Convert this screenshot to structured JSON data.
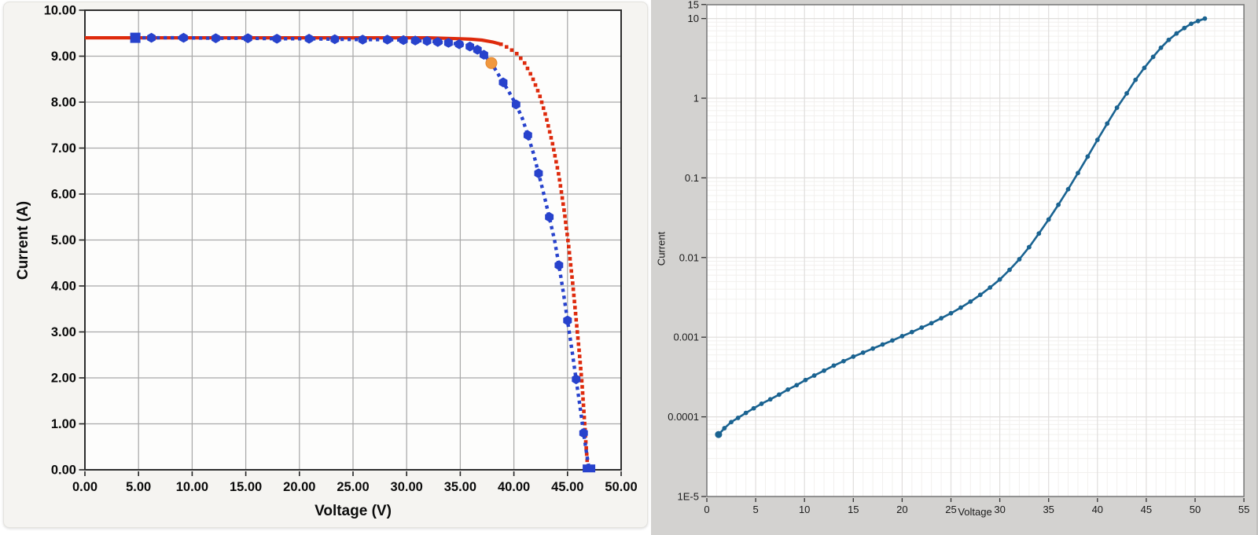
{
  "chart_data": [
    {
      "type": "line",
      "title": "",
      "xlabel": "Voltage (V)",
      "ylabel": "Current (A)",
      "xlim": [
        0,
        50
      ],
      "ylim": [
        0,
        10
      ],
      "grid": true,
      "x_ticks": [
        {
          "v": 0,
          "label": "0.00"
        },
        {
          "v": 5,
          "label": "5.00"
        },
        {
          "v": 10,
          "label": "10.00"
        },
        {
          "v": 15,
          "label": "15.00"
        },
        {
          "v": 20,
          "label": "20.00"
        },
        {
          "v": 25,
          "label": "25.00"
        },
        {
          "v": 30,
          "label": "30.00"
        },
        {
          "v": 35,
          "label": "35.00"
        },
        {
          "v": 40,
          "label": "40.00"
        },
        {
          "v": 45,
          "label": "45.00"
        },
        {
          "v": 50,
          "label": "50.00"
        }
      ],
      "y_ticks": [
        {
          "v": 0,
          "label": "0.00"
        },
        {
          "v": 1,
          "label": "1.00"
        },
        {
          "v": 2,
          "label": "2.00"
        },
        {
          "v": 3,
          "label": "3.00"
        },
        {
          "v": 4,
          "label": "4.00"
        },
        {
          "v": 5,
          "label": "5.00"
        },
        {
          "v": 6,
          "label": "6.00"
        },
        {
          "v": 7,
          "label": "7.00"
        },
        {
          "v": 8,
          "label": "8.00"
        },
        {
          "v": 9,
          "label": "9.00"
        },
        {
          "v": 10,
          "label": "10.00"
        }
      ],
      "series": [
        {
          "id": "model-iv-curve",
          "color": "#de2a0c",
          "style": "solid-then-dotted",
          "solid_until_v": 39.4,
          "points": [
            [
              0,
              9.4
            ],
            [
              2,
              9.4
            ],
            [
              4,
              9.4
            ],
            [
              6,
              9.4
            ],
            [
              8,
              9.4
            ],
            [
              10,
              9.4
            ],
            [
              12,
              9.4
            ],
            [
              14,
              9.4
            ],
            [
              16,
              9.4
            ],
            [
              18,
              9.4
            ],
            [
              20,
              9.4
            ],
            [
              22,
              9.4
            ],
            [
              24,
              9.4
            ],
            [
              26,
              9.4
            ],
            [
              28,
              9.4
            ],
            [
              30,
              9.4
            ],
            [
              32,
              9.4
            ],
            [
              33.5,
              9.39
            ],
            [
              35,
              9.38
            ],
            [
              36,
              9.37
            ],
            [
              37,
              9.35
            ],
            [
              38,
              9.31
            ],
            [
              38.8,
              9.26
            ],
            [
              39.5,
              9.18
            ],
            [
              40.3,
              9.05
            ],
            [
              41.0,
              8.85
            ],
            [
              41.7,
              8.55
            ],
            [
              42.4,
              8.15
            ],
            [
              43.0,
              7.68
            ],
            [
              43.6,
              7.1
            ],
            [
              44.2,
              6.4
            ],
            [
              44.7,
              5.62
            ],
            [
              45.1,
              4.88
            ],
            [
              45.5,
              4.02
            ],
            [
              45.8,
              3.28
            ],
            [
              46.1,
              2.55
            ],
            [
              46.35,
              1.88
            ],
            [
              46.55,
              1.18
            ],
            [
              46.7,
              0.62
            ],
            [
              46.85,
              0.15
            ],
            [
              46.9,
              0.02
            ]
          ]
        },
        {
          "id": "measured-iv-curve",
          "color": "#2742cc",
          "style": "dotted",
          "marker": "hexagon",
          "points": [
            [
              4.7,
              9.4
            ],
            [
              6.2,
              9.4
            ],
            [
              9.2,
              9.4
            ],
            [
              12.2,
              9.39
            ],
            [
              15.2,
              9.39
            ],
            [
              17.9,
              9.38
            ],
            [
              20.9,
              9.38
            ],
            [
              23.3,
              9.37
            ],
            [
              25.9,
              9.36
            ],
            [
              28.2,
              9.36
            ],
            [
              29.7,
              9.35
            ],
            [
              30.8,
              9.34
            ],
            [
              31.9,
              9.33
            ],
            [
              32.9,
              9.31
            ],
            [
              33.9,
              9.29
            ],
            [
              34.9,
              9.26
            ],
            [
              35.9,
              9.21
            ],
            [
              36.6,
              9.14
            ],
            [
              37.2,
              9.03
            ],
            [
              37.9,
              8.85
            ],
            [
              38.4,
              8.66
            ],
            [
              39.0,
              8.43
            ],
            [
              39.6,
              8.2
            ],
            [
              40.2,
              7.95
            ],
            [
              40.8,
              7.64
            ],
            [
              41.3,
              7.28
            ],
            [
              41.8,
              6.9
            ],
            [
              42.3,
              6.45
            ],
            [
              42.8,
              5.99
            ],
            [
              43.3,
              5.5
            ],
            [
              43.8,
              4.99
            ],
            [
              44.2,
              4.45
            ],
            [
              44.6,
              3.88
            ],
            [
              45.0,
              3.25
            ],
            [
              45.4,
              2.62
            ],
            [
              45.8,
              1.97
            ],
            [
              46.15,
              1.4
            ],
            [
              46.5,
              0.8
            ],
            [
              46.75,
              0.4
            ],
            [
              47.0,
              0.03
            ]
          ],
          "marker_points": [
            [
              6.2,
              9.4
            ],
            [
              9.2,
              9.4
            ],
            [
              12.2,
              9.39
            ],
            [
              15.2,
              9.39
            ],
            [
              17.9,
              9.38
            ],
            [
              20.9,
              9.38
            ],
            [
              23.3,
              9.37
            ],
            [
              25.9,
              9.36
            ],
            [
              28.2,
              9.36
            ],
            [
              29.7,
              9.35
            ],
            [
              30.8,
              9.34
            ],
            [
              31.9,
              9.33
            ],
            [
              32.9,
              9.31
            ],
            [
              33.9,
              9.29
            ],
            [
              34.9,
              9.26
            ],
            [
              35.9,
              9.21
            ],
            [
              36.6,
              9.14
            ],
            [
              37.2,
              9.03
            ],
            [
              39.0,
              8.43
            ],
            [
              40.2,
              7.95
            ],
            [
              41.3,
              7.28
            ],
            [
              42.3,
              6.45
            ],
            [
              43.3,
              5.5
            ],
            [
              44.2,
              4.45
            ],
            [
              45.0,
              3.25
            ],
            [
              45.8,
              1.97
            ],
            [
              46.5,
              0.8
            ]
          ],
          "start_marker": [
            4.7,
            9.4
          ],
          "end_marker": [
            47.0,
            0.03
          ]
        }
      ],
      "mpp_marker": {
        "color": "#f0983f",
        "edge": "#e4862e",
        "point": [
          37.9,
          8.85
        ]
      }
    },
    {
      "type": "line",
      "title": "",
      "xlabel": "Voltage",
      "ylabel": "Current",
      "xlim": [
        0,
        55
      ],
      "yscale": "log",
      "ylim": [
        1e-05,
        15
      ],
      "grid": true,
      "x_ticks": [
        {
          "v": 0,
          "label": "0"
        },
        {
          "v": 5,
          "label": "5"
        },
        {
          "v": 10,
          "label": "10"
        },
        {
          "v": 15,
          "label": "15"
        },
        {
          "v": 20,
          "label": "20"
        },
        {
          "v": 25,
          "label": "25"
        },
        {
          "v": 30,
          "label": "30"
        },
        {
          "v": 35,
          "label": "35"
        },
        {
          "v": 40,
          "label": "40"
        },
        {
          "v": 45,
          "label": "45"
        },
        {
          "v": 50,
          "label": "50"
        },
        {
          "v": 55,
          "label": "55"
        }
      ],
      "y_ticks": [
        {
          "v": 15,
          "label": "15"
        },
        {
          "v": 10,
          "label": "10"
        },
        {
          "v": 1,
          "label": "1"
        },
        {
          "v": 0.1,
          "label": "0.1"
        },
        {
          "v": 0.01,
          "label": "0.01"
        },
        {
          "v": 0.001,
          "label": "0.001"
        },
        {
          "v": 0.0001,
          "label": "0.0001"
        },
        {
          "v": 1e-05,
          "label": "1E-5"
        }
      ],
      "series": [
        {
          "id": "log-iv-curve",
          "color": "#1a6391",
          "marker": "circle",
          "points": [
            [
              1.2,
              6e-05
            ],
            [
              1.8,
              7.2e-05
            ],
            [
              2.5,
              8.6e-05
            ],
            [
              3.2,
              9.7e-05
            ],
            [
              4.0,
              0.000112
            ],
            [
              4.8,
              0.000128
            ],
            [
              5.6,
              0.000146
            ],
            [
              6.5,
              0.000166
            ],
            [
              7.4,
              0.00019
            ],
            [
              8.3,
              0.00022
            ],
            [
              9.2,
              0.00025
            ],
            [
              10.1,
              0.00029
            ],
            [
              11.0,
              0.00033
            ],
            [
              12.0,
              0.00038
            ],
            [
              13.0,
              0.00044
            ],
            [
              14.0,
              0.0005
            ],
            [
              15.0,
              0.00057
            ],
            [
              16.0,
              0.00064
            ],
            [
              17.0,
              0.00072
            ],
            [
              18.0,
              0.00081
            ],
            [
              19.0,
              0.00091
            ],
            [
              20.0,
              0.00103
            ],
            [
              21.0,
              0.00116
            ],
            [
              22.0,
              0.00132
            ],
            [
              23.0,
              0.0015
            ],
            [
              24.0,
              0.00173
            ],
            [
              25.0,
              0.002
            ],
            [
              26.0,
              0.00235
            ],
            [
              27.0,
              0.0028
            ],
            [
              28.0,
              0.0034
            ],
            [
              29.0,
              0.0042
            ],
            [
              30.0,
              0.0053
            ],
            [
              31.0,
              0.007
            ],
            [
              32.0,
              0.0095
            ],
            [
              33.0,
              0.0135
            ],
            [
              34.0,
              0.02
            ],
            [
              35.0,
              0.03
            ],
            [
              36.0,
              0.046
            ],
            [
              37.0,
              0.072
            ],
            [
              38.0,
              0.115
            ],
            [
              39.0,
              0.185
            ],
            [
              40.0,
              0.3
            ],
            [
              41.0,
              0.48
            ],
            [
              42.0,
              0.76
            ],
            [
              43.0,
              1.15
            ],
            [
              43.9,
              1.7
            ],
            [
              44.8,
              2.4
            ],
            [
              45.7,
              3.3
            ],
            [
              46.5,
              4.3
            ],
            [
              47.3,
              5.4
            ],
            [
              48.1,
              6.5
            ],
            [
              48.9,
              7.6
            ],
            [
              49.6,
              8.6
            ],
            [
              50.3,
              9.3
            ],
            [
              51.0,
              10.0
            ]
          ]
        }
      ]
    }
  ],
  "colors": {
    "left_panel_bg": "#f5f4f1",
    "left_plot_bg": "#fdfdfc",
    "left_grid": "#a9a9a9",
    "left_frame": "#2e2e2e",
    "right_panel_bg": "#d3d2d0",
    "right_plot_bg": "#ffffff",
    "right_grid_major": "#e0dedc",
    "right_grid_minor": "#f2f0ee",
    "right_frame": "#757575",
    "red_curve": "#de2a0c",
    "blue_curve": "#2742cc",
    "mpp_marker": "#f0983f",
    "log_curve": "#1a6391"
  }
}
